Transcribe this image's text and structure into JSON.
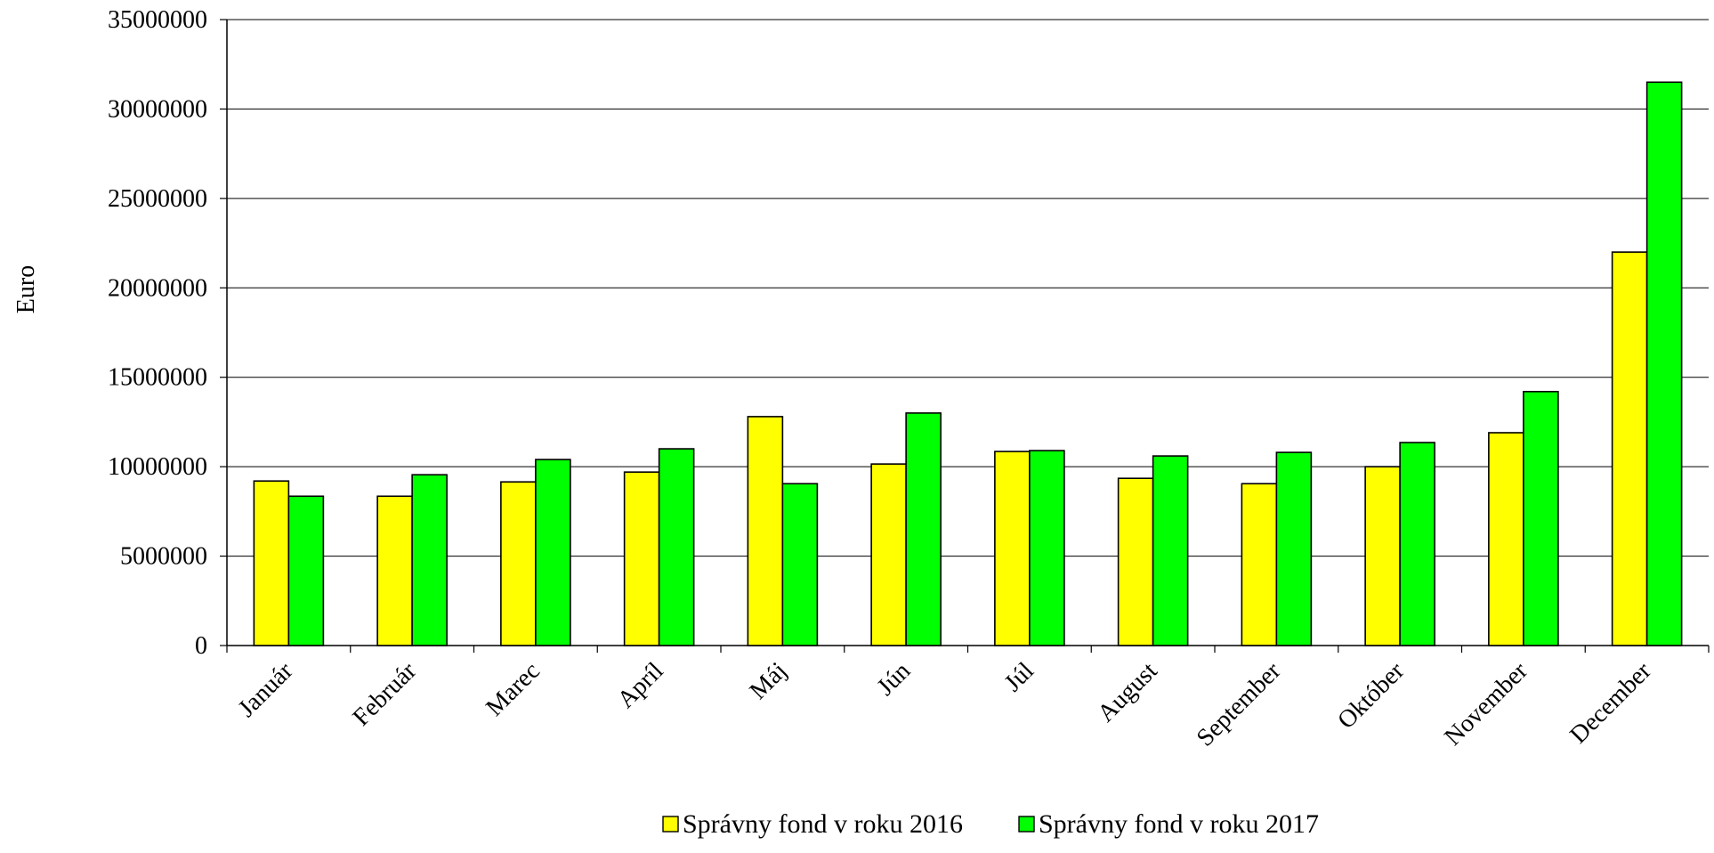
{
  "chart_data": {
    "type": "bar",
    "title": "",
    "xlabel": "",
    "ylabel": "Euro",
    "ylim": [
      0,
      35000000
    ],
    "yticks": [
      0,
      5000000,
      10000000,
      15000000,
      20000000,
      25000000,
      30000000,
      35000000
    ],
    "ytick_labels": [
      "0",
      "5000000",
      "10000000",
      "15000000",
      "20000000",
      "25000000",
      "30000000",
      "35000000"
    ],
    "grid": true,
    "legend_position": "bottom",
    "categories": [
      "Január",
      "Február",
      "Marec",
      "Apríl",
      "Máj",
      "Jún",
      "Júl",
      "August",
      "September",
      "Október",
      "November",
      "December"
    ],
    "series": [
      {
        "name": "Správny fond v roku 2016",
        "color": "#ffff00",
        "values": [
          9200000,
          8350000,
          9150000,
          9700000,
          12800000,
          10150000,
          10850000,
          9350000,
          9050000,
          10000000,
          11900000,
          22000000
        ]
      },
      {
        "name": "Správny fond v roku 2017",
        "color": "#00ff00",
        "values": [
          8350000,
          9550000,
          10400000,
          11000000,
          9050000,
          13000000,
          10900000,
          10600000,
          10800000,
          11350000,
          14200000,
          31500000
        ]
      }
    ]
  }
}
